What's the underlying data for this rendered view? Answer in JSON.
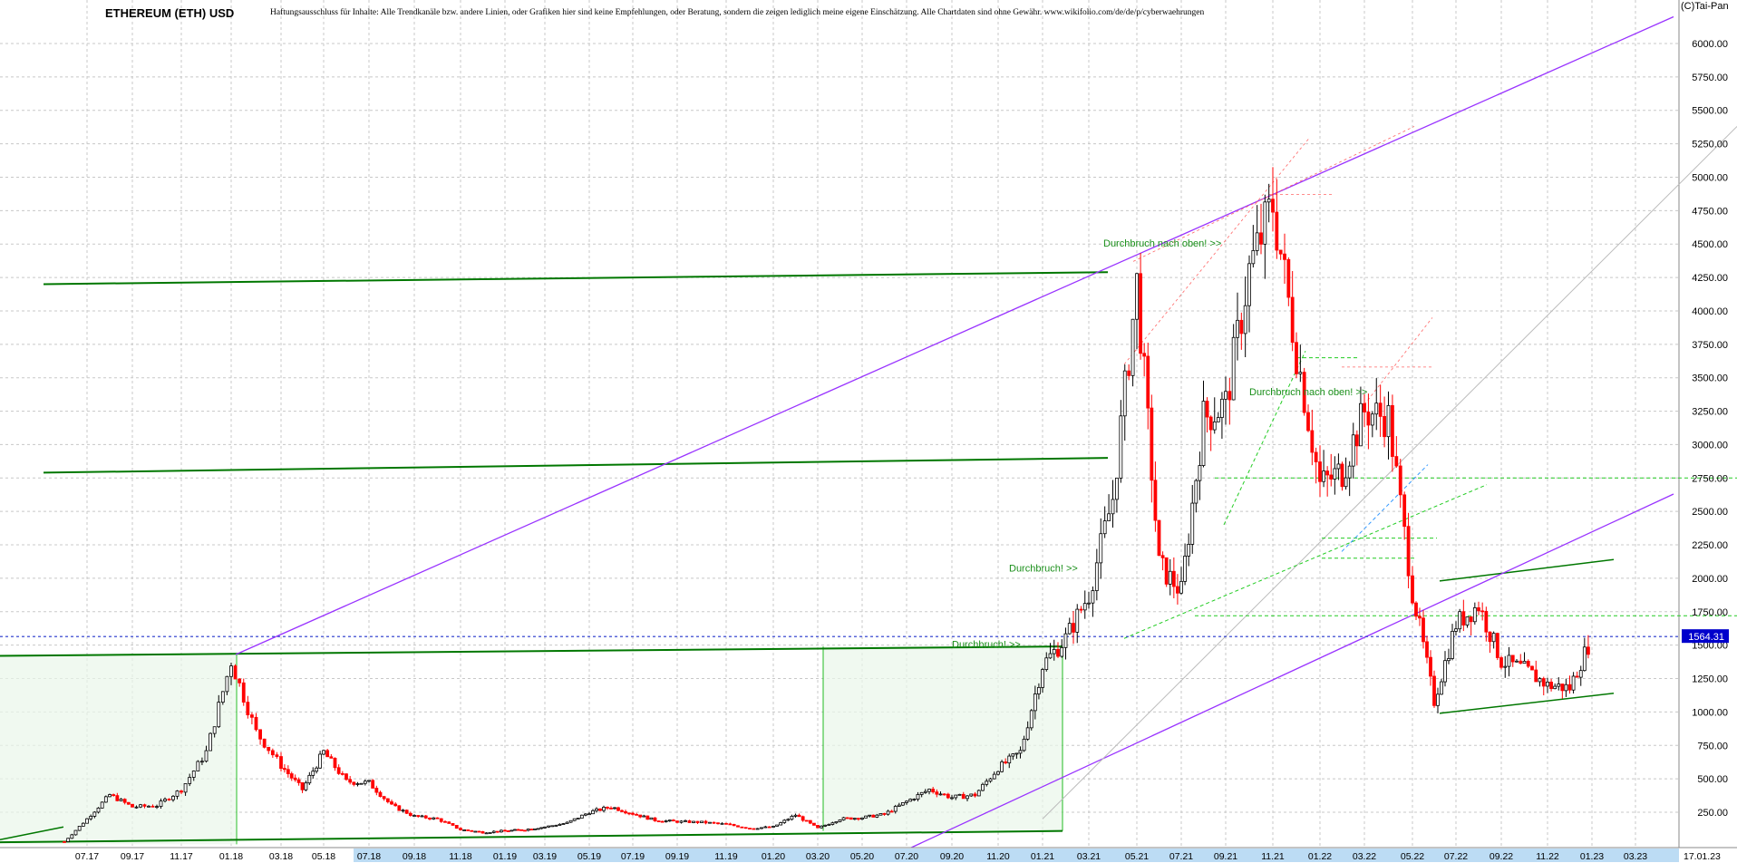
{
  "header": {
    "title": "ETHEREUM (ETH) USD",
    "disclaimer": "Haftungsausschluss für Inhalte: Alle Trendkanäle bzw. andere Linien, oder Grafiken hier sind keine Empfehlungen, oder Beratung, sondern die zeigen lediglich meine eigene Einschätzung. Alle Chartdaten sind ohne Gewähr. www.wikifolio.com/de/de/p/cyberwaehrungen",
    "copyright": "(C)Tai-Pan"
  },
  "chart_data": {
    "type": "line",
    "title": "ETHEREUM (ETH) USD",
    "style": "candlestick",
    "ylim": [
      0,
      6250
    ],
    "yticks": [
      250,
      500,
      750,
      1000,
      1250,
      1500,
      1750,
      2000,
      2250,
      2500,
      2750,
      3000,
      3250,
      3500,
      3750,
      4000,
      4250,
      4500,
      4750,
      5000,
      5250,
      5500,
      5750,
      6000
    ],
    "ytick_labels": [
      "250.00",
      "500.00",
      "750.00",
      "1000.00",
      "1250.00",
      "1500.00",
      "1750.00",
      "2000.00",
      "2250.00",
      "2500.00",
      "2750.00",
      "3000.00",
      "3250.00",
      "3500.00",
      "3750.00",
      "4000.00",
      "4250.00",
      "4500.00",
      "4750.00",
      "5000.00",
      "5250.00",
      "5500.00",
      "5750.00",
      "6000.00"
    ],
    "xticks": [
      "07.17",
      "09.17",
      "11.17",
      "01.18",
      "03.18",
      "05.18",
      "07.18",
      "09.18",
      "11.18",
      "01.19",
      "03.19",
      "05.19",
      "07.19",
      "09.19",
      "11.19",
      "01.20",
      "03.20",
      "05.20",
      "07.20",
      "09.20",
      "11.20",
      "01.21",
      "03.21",
      "05.21",
      "07.21",
      "09.21",
      "11.21",
      "01.22",
      "03.22",
      "05.22",
      "07.22",
      "09.22",
      "11.22",
      "01.23",
      "03.23"
    ],
    "xrange": [
      "2017-06",
      "2023-04"
    ],
    "last_price_label": "1564.31",
    "last_date_label": "17.01.23",
    "grid": true,
    "series": [
      {
        "x": [
          "2017-06",
          "2017-07",
          "2017-08",
          "2017-09",
          "2017-10",
          "2017-11",
          "2017-12",
          "2018-01",
          "2018-02",
          "2018-03",
          "2018-04",
          "2018-05",
          "2018-06",
          "2018-07",
          "2018-08",
          "2018-09",
          "2018-10",
          "2018-11",
          "2018-12",
          "2019-01",
          "2019-02",
          "2019-03",
          "2019-04",
          "2019-05",
          "2019-06",
          "2019-07",
          "2019-08",
          "2019-09",
          "2019-10",
          "2019-11",
          "2019-12",
          "2020-01",
          "2020-02",
          "2020-03",
          "2020-04",
          "2020-05",
          "2020-06",
          "2020-07",
          "2020-08",
          "2020-09",
          "2020-10",
          "2020-11",
          "2020-12",
          "2021-01",
          "2021-02",
          "2021-03",
          "2021-04",
          "2021-05",
          "2021-06",
          "2021-07",
          "2021-08",
          "2021-09",
          "2021-10",
          "2021-11",
          "2021-12",
          "2022-01",
          "2022-02",
          "2022-03",
          "2022-04",
          "2022-05",
          "2022-06",
          "2022-07",
          "2022-08",
          "2022-09",
          "2022-10",
          "2022-11",
          "2022-12",
          "2023-01"
        ],
        "values": [
          30,
          200,
          380,
          290,
          300,
          420,
          700,
          1380,
          850,
          600,
          420,
          700,
          480,
          470,
          300,
          220,
          200,
          120,
          100,
          110,
          120,
          140,
          170,
          250,
          290,
          240,
          190,
          180,
          175,
          160,
          130,
          140,
          230,
          130,
          200,
          210,
          235,
          330,
          420,
          360,
          380,
          580,
          700,
          1350,
          1550,
          1880,
          2600,
          4200,
          2100,
          1900,
          3200,
          3300,
          4300,
          4800,
          3700,
          2700,
          2800,
          3250,
          3200,
          1900,
          1080,
          1660,
          1800,
          1380,
          1320,
          1200,
          1180,
          1564
        ]
      }
    ],
    "annotations": [
      "Durchbruch nach oben! >>",
      "Durchbruch nach oben! >>",
      "Durchbruch! >>",
      "Durchbruch! >>"
    ],
    "colors": {
      "up_candle": "#000000",
      "down_candle": "#ff0000",
      "channel": "#9933ff",
      "support": "#007700",
      "guide": "#aaaaaa",
      "last_price_bg": "#0000cc"
    }
  }
}
